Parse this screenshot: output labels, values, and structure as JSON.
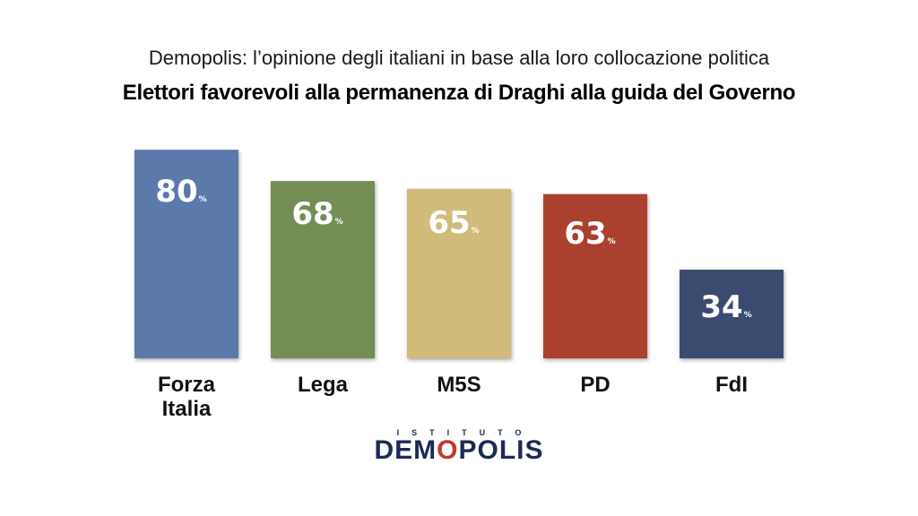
{
  "header": {
    "subtitle": "Demopolis: l’opinione degli italiani in base alla loro collocazione politica",
    "title": "Elettori favorevoli alla permanenza di Draghi alla guida del Governo"
  },
  "chart_data": {
    "type": "bar",
    "title": "Elettori favorevoli alla permanenza di Draghi alla guida del Governo",
    "subtitle": "Demopolis: l’opinione degli italiani in base alla loro collocazione politica",
    "categories": [
      [
        "Forza",
        "Italia"
      ],
      [
        "Lega"
      ],
      [
        "M5S"
      ],
      [
        "PD"
      ],
      [
        "FdI"
      ]
    ],
    "values": [
      80,
      68,
      65,
      63,
      34
    ],
    "unit": "%",
    "colors": [
      "#5b79aa",
      "#738d54",
      "#d1bb7b",
      "#ac402e",
      "#3b4a6f"
    ],
    "ylim": [
      0,
      100
    ],
    "grid": false
  },
  "logo": {
    "top": "ISTITUTO",
    "brand_pre": "DEM",
    "brand_o": "O",
    "brand_post": "POLIS"
  }
}
